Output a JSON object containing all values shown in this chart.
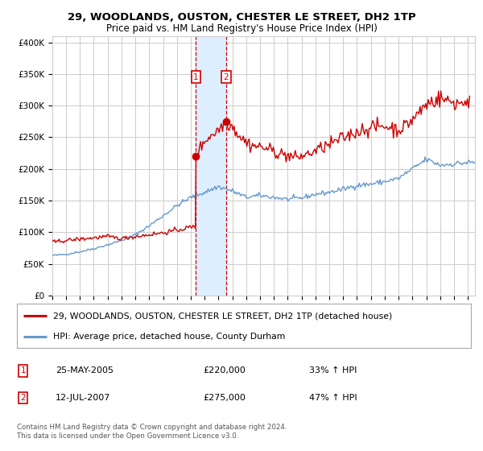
{
  "title": "29, WOODLANDS, OUSTON, CHESTER LE STREET, DH2 1TP",
  "subtitle": "Price paid vs. HM Land Registry's House Price Index (HPI)",
  "legend_property": "29, WOODLANDS, OUSTON, CHESTER LE STREET, DH2 1TP (detached house)",
  "legend_hpi": "HPI: Average price, detached house, County Durham",
  "footnote": "Contains HM Land Registry data © Crown copyright and database right 2024.\nThis data is licensed under the Open Government Licence v3.0.",
  "sale1_date": "25-MAY-2005",
  "sale1_price": "£220,000",
  "sale1_hpi": "33% ↑ HPI",
  "sale2_date": "12-JUL-2007",
  "sale2_price": "£275,000",
  "sale2_hpi": "47% ↑ HPI",
  "sale1_year": 2005.38,
  "sale1_value": 220000,
  "sale2_year": 2007.54,
  "sale2_value": 275000,
  "ylim": [
    0,
    410000
  ],
  "xlim_start": 1995.0,
  "xlim_end": 2025.5,
  "property_color": "#cc0000",
  "hpi_color": "#6699cc",
  "shade_color": "#ddeeff",
  "marker_box_color": "#cc0000",
  "grid_color": "#cccccc",
  "bg_color": "#ffffff"
}
